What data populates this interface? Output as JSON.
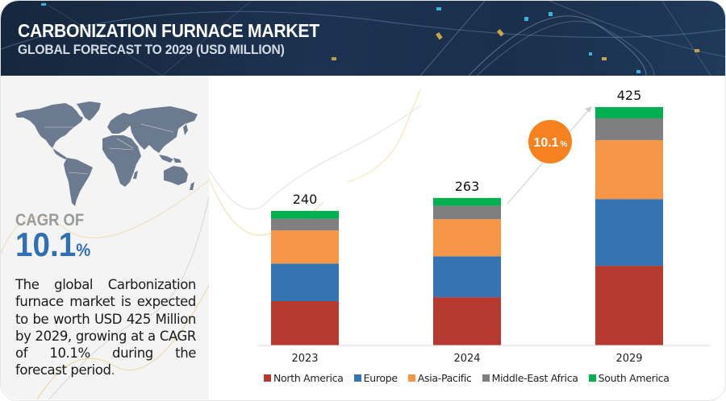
{
  "header": {
    "title": "CARBONIZATION FURNACE MARKET",
    "subtitle": "GLOBAL FORECAST TO 2029 (USD MILLION)"
  },
  "summary": {
    "cagr_label": "CAGR OF",
    "cagr_value": "10.1",
    "cagr_unit": "%",
    "description": "The global Carbonization furnace market is expected to be worth USD 425 Million by 2029, growing at a CAGR of 10.1% during the forecast period",
    "description_end": ".",
    "map_icon": "world-map-icon"
  },
  "badge": {
    "value": "10.1",
    "unit": "%",
    "color": "#f5821f"
  },
  "colors": {
    "header_bg": "#1b2d45",
    "left_panel_bg": "#f4f4f4",
    "accent_blue": "#2f6fb3"
  },
  "chart_data": {
    "type": "bar",
    "stacked": true,
    "title": "Carbonization Furnace Market, Global Forecast to 2029 (USD Million)",
    "xlabel": "",
    "ylabel": "USD Million",
    "categories": [
      "2023",
      "2024",
      "2029"
    ],
    "totals": [
      240,
      263,
      425
    ],
    "ylim": [
      0,
      425
    ],
    "grid": false,
    "legend_position": "bottom",
    "series": [
      {
        "name": "North America",
        "color": "#b5392f",
        "values": [
          79,
          86,
          142
        ]
      },
      {
        "name": "Europe",
        "color": "#3573b3",
        "values": [
          67,
          73,
          119
        ]
      },
      {
        "name": "Asia-Pacific",
        "color": "#f79646",
        "values": [
          59,
          66,
          105
        ]
      },
      {
        "name": "Middle-East Africa",
        "color": "#7f7f7f",
        "values": [
          21,
          24,
          39
        ]
      },
      {
        "name": "South America",
        "color": "#00b050",
        "values": [
          14,
          14,
          20
        ]
      }
    ],
    "annotation": {
      "text": "10.1%",
      "type": "cagr-arrow",
      "from": "2024",
      "to": "2029"
    }
  }
}
